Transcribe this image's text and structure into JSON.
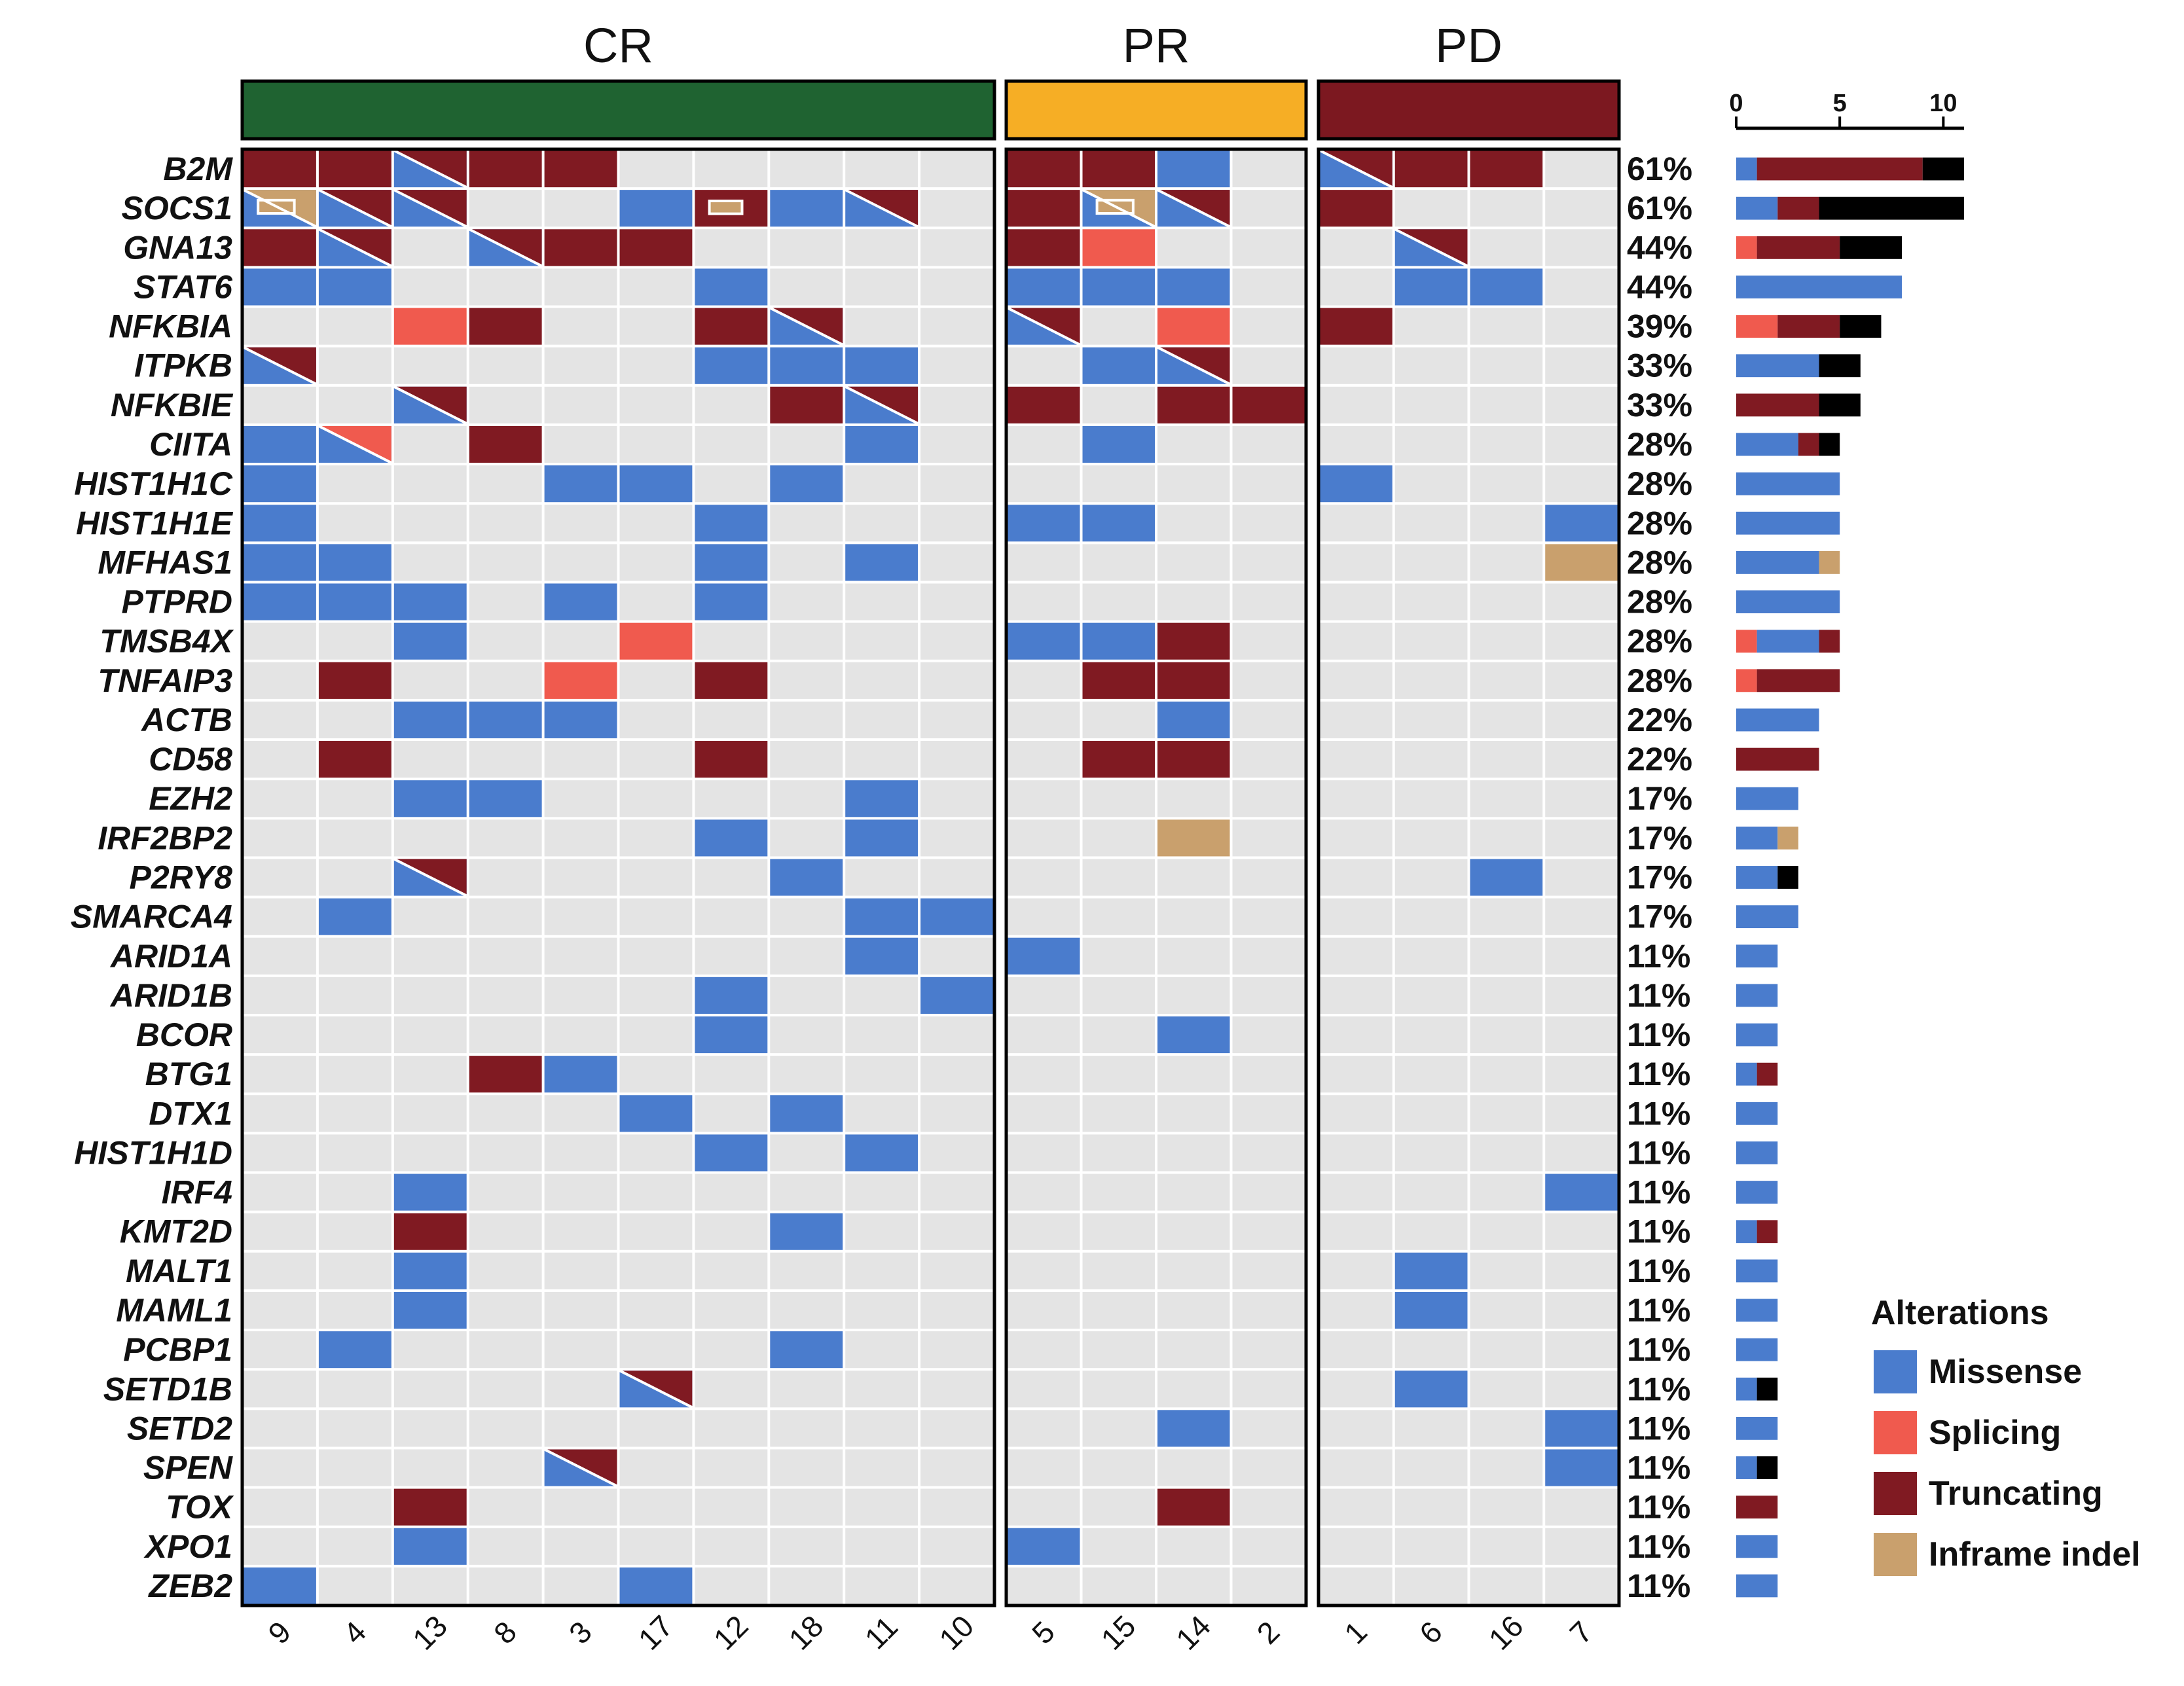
{
  "chart_data": {
    "type": "heatmap",
    "subtype": "oncoprint",
    "groups": [
      {
        "name": "CR",
        "color": "#1f6331",
        "samples": [
          "9",
          "4",
          "13",
          "8",
          "3",
          "17",
          "12",
          "18",
          "11",
          "10"
        ]
      },
      {
        "name": "PR",
        "color": "#f6ae25",
        "samples": [
          "5",
          "15",
          "14",
          "2"
        ]
      },
      {
        "name": "PD",
        "color": "#7c1820",
        "samples": [
          "1",
          "6",
          "16",
          "7"
        ]
      }
    ],
    "samples": [
      "9",
      "4",
      "13",
      "8",
      "3",
      "17",
      "12",
      "18",
      "11",
      "10",
      "5",
      "15",
      "14",
      "2",
      "1",
      "6",
      "16",
      "7"
    ],
    "alteration_types": [
      "Missense",
      "Splicing",
      "Truncating",
      "Inframe indel",
      "Multi hit"
    ],
    "colors": {
      "Missense": "#4a7ccd",
      "Splicing": "#f05a4e",
      "Truncating": "#801a22",
      "Inframe indel": "#c9a06d",
      "Multi hit": "#000000",
      "None": "#e4e4e4",
      "Grid": "#ffffff"
    },
    "genes": [
      {
        "name": "B2M",
        "pct": "61%",
        "cells": [
          "T",
          "T",
          "M+T",
          "T",
          "T",
          "",
          "",
          "",
          "",
          "",
          "T",
          "T",
          "M",
          "",
          "M+T",
          "T",
          "T",
          ""
        ],
        "bar": {
          "Missense": 1,
          "Truncating": 8,
          "Multi hit": 2
        }
      },
      {
        "name": "SOCS1",
        "pct": "61%",
        "cells": [
          "M+I",
          "M+T",
          "M+T",
          "",
          "",
          "M",
          "I+T",
          "M",
          "M+T",
          "",
          "T",
          "M+I",
          "M+T",
          "",
          "T",
          "",
          "",
          ""
        ],
        "bar": {
          "Missense": 2,
          "Truncating": 2,
          "Multi hit": 7
        }
      },
      {
        "name": "GNA13",
        "pct": "44%",
        "cells": [
          "T",
          "M+T",
          "",
          "M+T",
          "T",
          "T",
          "",
          "",
          "",
          "",
          "T",
          "S",
          "",
          "",
          "",
          "M+T",
          "",
          ""
        ],
        "bar": {
          "Splicing": 1,
          "Truncating": 4,
          "Multi hit": 3
        }
      },
      {
        "name": "STAT6",
        "pct": "44%",
        "cells": [
          "M",
          "M",
          "",
          "",
          "",
          "",
          "M",
          "",
          "",
          "",
          "M",
          "M",
          "M",
          "",
          "",
          "M",
          "M",
          ""
        ],
        "bar": {
          "Missense": 8
        }
      },
      {
        "name": "NFKBIA",
        "pct": "39%",
        "cells": [
          "",
          "",
          "S",
          "T",
          "",
          "",
          "T",
          "M+T",
          "",
          "",
          "M+T",
          "",
          "S",
          "",
          "T",
          "",
          "",
          ""
        ],
        "bar": {
          "Splicing": 2,
          "Truncating": 3,
          "Multi hit": 2
        }
      },
      {
        "name": "ITPKB",
        "pct": "33%",
        "cells": [
          "M+T",
          "",
          "",
          "",
          "",
          "",
          "M",
          "M",
          "M",
          "",
          "",
          "M",
          "M+T",
          "",
          "",
          "",
          "",
          ""
        ],
        "bar": {
          "Missense": 4,
          "Multi hit": 2
        }
      },
      {
        "name": "NFKBIE",
        "pct": "33%",
        "cells": [
          "",
          "",
          "M+T",
          "",
          "",
          "",
          "",
          "T",
          "M+T",
          "",
          "T",
          "",
          "T",
          "T",
          "",
          "",
          "",
          ""
        ],
        "bar": {
          "Truncating": 4,
          "Multi hit": 2
        }
      },
      {
        "name": "CIITA",
        "pct": "28%",
        "cells": [
          "M",
          "M+S",
          "",
          "T",
          "",
          "",
          "",
          "",
          "M",
          "",
          "",
          "M",
          "",
          "",
          "",
          "",
          "",
          ""
        ],
        "bar": {
          "Missense": 3,
          "Truncating": 1,
          "Multi hit": 1
        }
      },
      {
        "name": "HIST1H1C",
        "pct": "28%",
        "cells": [
          "M",
          "",
          "",
          "",
          "M",
          "M",
          "",
          "M",
          "",
          "",
          "",
          "",
          "",
          "",
          "M",
          "",
          "",
          ""
        ],
        "bar": {
          "Missense": 5
        }
      },
      {
        "name": "HIST1H1E",
        "pct": "28%",
        "cells": [
          "M",
          "",
          "",
          "",
          "",
          "",
          "M",
          "",
          "",
          "",
          "M",
          "M",
          "",
          "",
          "",
          "",
          "",
          "M"
        ],
        "bar": {
          "Missense": 5
        }
      },
      {
        "name": "MFHAS1",
        "pct": "28%",
        "cells": [
          "M",
          "M",
          "",
          "",
          "",
          "",
          "M",
          "",
          "M",
          "",
          "",
          "",
          "",
          "",
          "",
          "",
          "",
          "I"
        ],
        "bar": {
          "Missense": 4,
          "Inframe indel": 1
        }
      },
      {
        "name": "PTPRD",
        "pct": "28%",
        "cells": [
          "M",
          "M",
          "M",
          "",
          "M",
          "",
          "M",
          "",
          "",
          "",
          "",
          "",
          "",
          "",
          "",
          "",
          "",
          ""
        ],
        "bar": {
          "Missense": 5
        }
      },
      {
        "name": "TMSB4X",
        "pct": "28%",
        "cells": [
          "",
          "",
          "M",
          "",
          "",
          "S",
          "",
          "",
          "",
          "",
          "M",
          "M",
          "T",
          "",
          "",
          "",
          "",
          ""
        ],
        "bar": {
          "Splicing": 1,
          "Missense": 3,
          "Truncating": 1
        }
      },
      {
        "name": "TNFAIP3",
        "pct": "28%",
        "cells": [
          "",
          "T",
          "",
          "",
          "S",
          "",
          "T",
          "",
          "",
          "",
          "",
          "T",
          "T",
          "",
          "",
          "",
          "",
          ""
        ],
        "bar": {
          "Splicing": 1,
          "Truncating": 4
        }
      },
      {
        "name": "ACTB",
        "pct": "22%",
        "cells": [
          "",
          "",
          "M",
          "M",
          "M",
          "",
          "",
          "",
          "",
          "",
          "",
          "",
          "M",
          "",
          "",
          "",
          "",
          ""
        ],
        "bar": {
          "Missense": 4
        }
      },
      {
        "name": "CD58",
        "pct": "22%",
        "cells": [
          "",
          "T",
          "",
          "",
          "",
          "",
          "T",
          "",
          "",
          "",
          "",
          "T",
          "T",
          "",
          "",
          "",
          "",
          ""
        ],
        "bar": {
          "Truncating": 4
        }
      },
      {
        "name": "EZH2",
        "pct": "17%",
        "cells": [
          "",
          "",
          "M",
          "M",
          "",
          "",
          "",
          "",
          "M",
          "",
          "",
          "",
          "",
          "",
          "",
          "",
          "",
          ""
        ],
        "bar": {
          "Missense": 3
        }
      },
      {
        "name": "IRF2BP2",
        "pct": "17%",
        "cells": [
          "",
          "",
          "",
          "",
          "",
          "",
          "M",
          "",
          "M",
          "",
          "",
          "",
          "I",
          "",
          "",
          "",
          "",
          ""
        ],
        "bar": {
          "Missense": 2,
          "Inframe indel": 1
        }
      },
      {
        "name": "P2RY8",
        "pct": "17%",
        "cells": [
          "",
          "",
          "M+T",
          "",
          "",
          "",
          "",
          "M",
          "",
          "",
          "",
          "",
          "",
          "",
          "",
          "",
          "M",
          ""
        ],
        "bar": {
          "Missense": 2,
          "Multi hit": 1
        }
      },
      {
        "name": "SMARCA4",
        "pct": "17%",
        "cells": [
          "",
          "M",
          "",
          "",
          "",
          "",
          "",
          "",
          "M",
          "M",
          "",
          "",
          "",
          "",
          "",
          "",
          "",
          ""
        ],
        "bar": {
          "Missense": 3
        }
      },
      {
        "name": "ARID1A",
        "pct": "11%",
        "cells": [
          "",
          "",
          "",
          "",
          "",
          "",
          "",
          "",
          "M",
          "",
          "M",
          "",
          "",
          "",
          "",
          "",
          "",
          ""
        ],
        "bar": {
          "Missense": 2
        }
      },
      {
        "name": "ARID1B",
        "pct": "11%",
        "cells": [
          "",
          "",
          "",
          "",
          "",
          "",
          "M",
          "",
          "",
          "M",
          "",
          "",
          "",
          "",
          "",
          "",
          "",
          ""
        ],
        "bar": {
          "Missense": 2
        }
      },
      {
        "name": "BCOR",
        "pct": "11%",
        "cells": [
          "",
          "",
          "",
          "",
          "",
          "",
          "M",
          "",
          "",
          "",
          "",
          "",
          "M",
          "",
          "",
          "",
          "",
          ""
        ],
        "bar": {
          "Missense": 2
        }
      },
      {
        "name": "BTG1",
        "pct": "11%",
        "cells": [
          "",
          "",
          "",
          "T",
          "M",
          "",
          "",
          "",
          "",
          "",
          "",
          "",
          "",
          "",
          "",
          "",
          "",
          ""
        ],
        "bar": {
          "Missense": 1,
          "Truncating": 1
        }
      },
      {
        "name": "DTX1",
        "pct": "11%",
        "cells": [
          "",
          "",
          "",
          "",
          "",
          "M",
          "",
          "M",
          "",
          "",
          "",
          "",
          "",
          "",
          "",
          "",
          "",
          ""
        ],
        "bar": {
          "Missense": 2
        }
      },
      {
        "name": "HIST1H1D",
        "pct": "11%",
        "cells": [
          "",
          "",
          "",
          "",
          "",
          "",
          "M",
          "",
          "M",
          "",
          "",
          "",
          "",
          "",
          "",
          "",
          "",
          ""
        ],
        "bar": {
          "Missense": 2
        }
      },
      {
        "name": "IRF4",
        "pct": "11%",
        "cells": [
          "",
          "",
          "M",
          "",
          "",
          "",
          "",
          "",
          "",
          "",
          "",
          "",
          "",
          "",
          "",
          "",
          "",
          "M"
        ],
        "bar": {
          "Missense": 2
        }
      },
      {
        "name": "KMT2D",
        "pct": "11%",
        "cells": [
          "",
          "",
          "T",
          "",
          "",
          "",
          "",
          "M",
          "",
          "",
          "",
          "",
          "",
          "",
          "",
          "",
          "",
          ""
        ],
        "bar": {
          "Missense": 1,
          "Truncating": 1
        }
      },
      {
        "name": "MALT1",
        "pct": "11%",
        "cells": [
          "",
          "",
          "M",
          "",
          "",
          "",
          "",
          "",
          "",
          "",
          "",
          "",
          "",
          "",
          "",
          "M",
          "",
          ""
        ],
        "bar": {
          "Missense": 2
        }
      },
      {
        "name": "MAML1",
        "pct": "11%",
        "cells": [
          "",
          "",
          "M",
          "",
          "",
          "",
          "",
          "",
          "",
          "",
          "",
          "",
          "",
          "",
          "",
          "M",
          "",
          ""
        ],
        "bar": {
          "Missense": 2
        }
      },
      {
        "name": "PCBP1",
        "pct": "11%",
        "cells": [
          "",
          "M",
          "",
          "",
          "",
          "",
          "",
          "M",
          "",
          "",
          "",
          "",
          "",
          "",
          "",
          "",
          "",
          ""
        ],
        "bar": {
          "Missense": 2
        }
      },
      {
        "name": "SETD1B",
        "pct": "11%",
        "cells": [
          "",
          "",
          "",
          "",
          "",
          "M+T",
          "",
          "",
          "",
          "",
          "",
          "",
          "",
          "",
          "",
          "M",
          "",
          ""
        ],
        "bar": {
          "Missense": 1,
          "Multi hit": 1
        }
      },
      {
        "name": "SETD2",
        "pct": "11%",
        "cells": [
          "",
          "",
          "",
          "",
          "",
          "",
          "",
          "",
          "",
          "",
          "",
          "",
          "M",
          "",
          "",
          "",
          "",
          "M"
        ],
        "bar": {
          "Missense": 2
        }
      },
      {
        "name": "SPEN",
        "pct": "11%",
        "cells": [
          "",
          "",
          "",
          "",
          "M+T",
          "",
          "",
          "",
          "",
          "",
          "",
          "",
          "",
          "",
          "",
          "",
          "",
          "M"
        ],
        "bar": {
          "Missense": 1,
          "Multi hit": 1
        }
      },
      {
        "name": "TOX",
        "pct": "11%",
        "cells": [
          "",
          "",
          "T",
          "",
          "",
          "",
          "",
          "",
          "",
          "",
          "",
          "",
          "T",
          "",
          "",
          "",
          "",
          ""
        ],
        "bar": {
          "Truncating": 2
        }
      },
      {
        "name": "XPO1",
        "pct": "11%",
        "cells": [
          "",
          "",
          "M",
          "",
          "",
          "",
          "",
          "",
          "",
          "",
          "M",
          "",
          "",
          "",
          "",
          "",
          "",
          ""
        ],
        "bar": {
          "Missense": 2
        }
      },
      {
        "name": "ZEB2",
        "pct": "11%",
        "cells": [
          "M",
          "",
          "",
          "",
          "",
          "M",
          "",
          "",
          "",
          "",
          "",
          "",
          "",
          "",
          "",
          "",
          "",
          ""
        ],
        "bar": {
          "Missense": 2
        }
      }
    ],
    "bar_axis": {
      "min": 0,
      "max": 11,
      "ticks": [
        0,
        5,
        10
      ]
    },
    "legend": {
      "title": "Alterations",
      "items": [
        "Missense",
        "Splicing",
        "Truncating",
        "Inframe indel"
      ]
    }
  }
}
